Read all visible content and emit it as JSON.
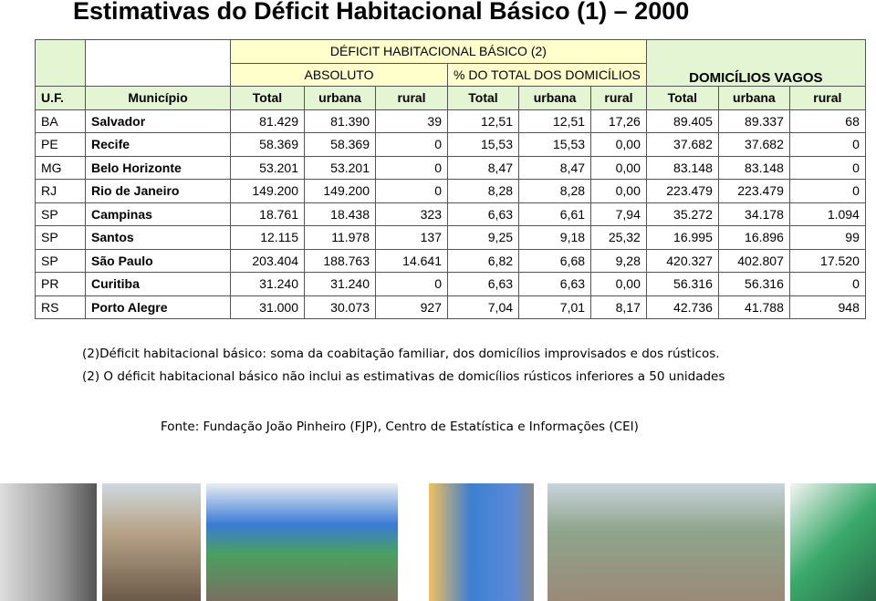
{
  "title": "Estimativas do Déficit Habitacional Básico (1) – 2000",
  "table": {
    "group_header": "DÉFICIT HABITACIONAL BÁSICO (2)",
    "sub_headers": [
      "ABSOLUTO",
      "% DO TOTAL DOS DOMICÍLIOS"
    ],
    "vagos_header": "DOMICÍLIOS VAGOS",
    "columns": [
      "U.F.",
      "Município",
      "Total",
      "urbana",
      "rural",
      "Total",
      "urbana",
      "rural",
      "Total",
      "urbana",
      "rural"
    ],
    "rows": [
      [
        "BA",
        "Salvador",
        "81.429",
        "81.390",
        "39",
        "12,51",
        "12,51",
        "17,26",
        "89.405",
        "89.337",
        "68"
      ],
      [
        "PE",
        "Recife",
        "58.369",
        "58.369",
        "0",
        "15,53",
        "15,53",
        "0,00",
        "37.682",
        "37.682",
        "0"
      ],
      [
        "MG",
        "Belo Horizonte",
        "53.201",
        "53.201",
        "0",
        "8,47",
        "8,47",
        "0,00",
        "83.148",
        "83.148",
        "0"
      ],
      [
        "RJ",
        "Rio de Janeiro",
        "149.200",
        "149.200",
        "0",
        "8,28",
        "8,28",
        "0,00",
        "223.479",
        "223.479",
        "0"
      ],
      [
        "SP",
        "Campinas",
        "18.761",
        "18.438",
        "323",
        "6,63",
        "6,61",
        "7,94",
        "35.272",
        "34.178",
        "1.094"
      ],
      [
        "SP",
        "Santos",
        "12.115",
        "11.978",
        "137",
        "9,25",
        "9,18",
        "25,32",
        "16.995",
        "16.896",
        "99"
      ],
      [
        "SP",
        "São Paulo",
        "203.404",
        "188.763",
        "14.641",
        "6,82",
        "6,68",
        "9,28",
        "420.327",
        "402.807",
        "17.520"
      ],
      [
        "PR",
        "Curitiba",
        "31.240",
        "31.240",
        "0",
        "6,63",
        "6,63",
        "0,00",
        "56.316",
        "56.316",
        "0"
      ],
      [
        "RS",
        "Porto Alegre",
        "31.000",
        "30.073",
        "927",
        "7,04",
        "7,01",
        "8,17",
        "42.736",
        "41.788",
        "948"
      ]
    ]
  },
  "notes": [
    "(2)Déficit habitacional básico: soma da coabitação familiar, dos domicílios improvisados e dos rústicos.",
    "(2) O déficit habitacional básico não inclui as estimativas de domicílios rústicos inferiores a 50 unidades"
  ],
  "source": "Fonte: Fundação João Pinheiro (FJP), Centro de Estatística e Informações (CEI)"
}
